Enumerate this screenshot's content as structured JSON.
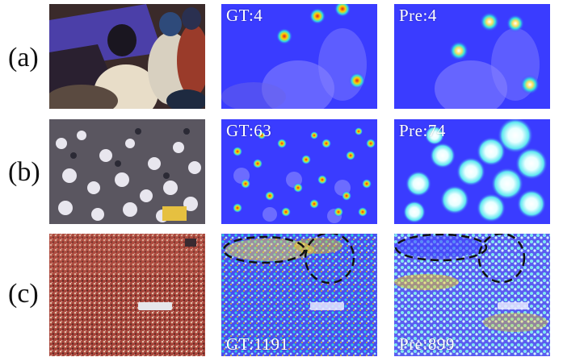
{
  "rows": [
    {
      "label": "(a)",
      "gt": "GT:4",
      "pre": "Pre:4"
    },
    {
      "label": "(b)",
      "gt": "GT:63",
      "pre": "Pre:74"
    },
    {
      "label": "(c)",
      "gt": "GT:1191",
      "pre": "Pre:899"
    }
  ],
  "colors": {
    "heatmap_base": "#3a3cff",
    "heatmap_hot": "#ffd200",
    "heatmap_peak": "#e02020",
    "crowd_red": "#b8443a",
    "crowd_white": "#e9e6f0"
  }
}
